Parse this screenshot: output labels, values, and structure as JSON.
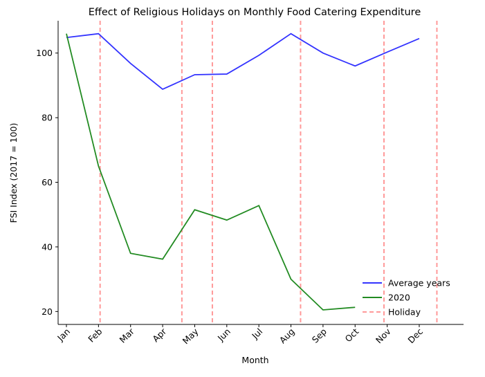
{
  "chart_data": {
    "type": "line",
    "title": "Effect of Religious Holidays on Monthly Food Catering Expenditure",
    "xlabel": "Month",
    "ylabel": "FSI Index (2017 = 100)",
    "categories": [
      "Jan",
      "Feb",
      "Mar",
      "Apr",
      "May",
      "Jun",
      "Jul",
      "Aug",
      "Sep",
      "Oct",
      "Nov",
      "Dec"
    ],
    "ylim": [
      16,
      110
    ],
    "yticks": [
      20,
      40,
      60,
      80,
      100
    ],
    "grid": false,
    "legend_position": "lower-right",
    "series": [
      {
        "name": "Average years",
        "color": "#3333ff",
        "x": [
          0,
          1,
          2,
          3,
          4,
          5,
          6,
          7,
          8,
          9,
          10,
          11
        ],
        "values": [
          104.8,
          106.0,
          96.8,
          88.8,
          93.3,
          93.5,
          99.3,
          106.0,
          100.0,
          96.0,
          100.3,
          104.5
        ]
      },
      {
        "name": "2020",
        "color": "#228b22",
        "x": [
          0,
          1,
          2,
          3,
          4,
          5,
          6,
          7,
          8,
          9
        ],
        "values": [
          106.0,
          65.0,
          38.0,
          36.2,
          51.5,
          48.3,
          52.8,
          30.0,
          20.5,
          21.3
        ]
      }
    ],
    "holiday_legend": "Holiday",
    "holiday_color": "#ff9999",
    "holidays_x": [
      1.05,
      3.6,
      4.55,
      7.3,
      9.9,
      11.55
    ]
  }
}
